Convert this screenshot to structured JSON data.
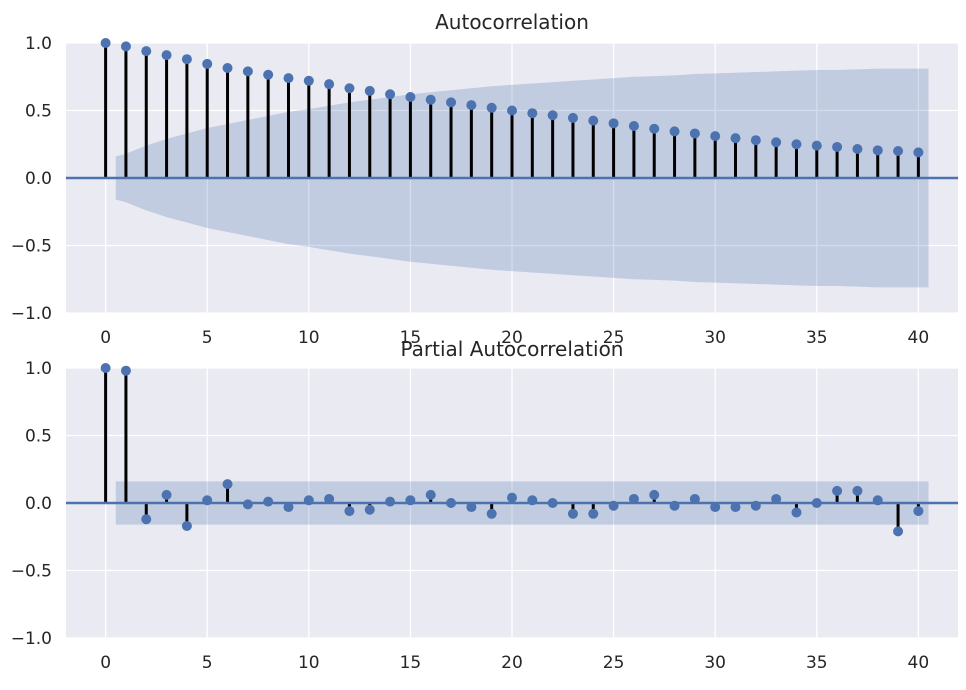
{
  "chart_data": [
    {
      "type": "stem",
      "title": "Autocorrelation",
      "xlabel": "",
      "ylabel": "",
      "xlim": [
        -1.95,
        41.95
      ],
      "ylim": [
        -1.0,
        1.0
      ],
      "xticks": [
        0,
        5,
        10,
        15,
        20,
        25,
        30,
        35,
        40
      ],
      "yticks": [
        -1.0,
        -0.5,
        0.0,
        0.5,
        1.0
      ],
      "ytick_labels": [
        "−1.0",
        "−0.5",
        "0.0",
        "0.5",
        "1.0"
      ],
      "grid": true,
      "lags": [
        0,
        1,
        2,
        3,
        4,
        5,
        6,
        7,
        8,
        9,
        10,
        11,
        12,
        13,
        14,
        15,
        16,
        17,
        18,
        19,
        20,
        21,
        22,
        23,
        24,
        25,
        26,
        27,
        28,
        29,
        30,
        31,
        32,
        33,
        34,
        35,
        36,
        37,
        38,
        39,
        40
      ],
      "values": [
        1.0,
        0.975,
        0.94,
        0.91,
        0.88,
        0.845,
        0.815,
        0.79,
        0.765,
        0.74,
        0.72,
        0.695,
        0.665,
        0.645,
        0.62,
        0.6,
        0.58,
        0.56,
        0.54,
        0.52,
        0.5,
        0.48,
        0.465,
        0.445,
        0.425,
        0.405,
        0.385,
        0.365,
        0.345,
        0.33,
        0.31,
        0.295,
        0.28,
        0.265,
        0.25,
        0.24,
        0.23,
        0.215,
        0.205,
        0.2,
        0.19
      ],
      "confidence_band": {
        "lags": [
          0.5,
          1,
          2,
          3,
          4,
          5,
          6,
          7,
          8,
          9,
          10,
          11,
          12,
          13,
          14,
          15,
          16,
          17,
          18,
          19,
          20,
          21,
          22,
          23,
          24,
          25,
          26,
          27,
          28,
          29,
          30,
          31,
          32,
          33,
          34,
          35,
          36,
          37,
          38,
          39,
          40.5
        ],
        "upper": [
          0.16,
          0.18,
          0.24,
          0.29,
          0.33,
          0.37,
          0.4,
          0.43,
          0.46,
          0.49,
          0.51,
          0.535,
          0.56,
          0.58,
          0.6,
          0.62,
          0.635,
          0.65,
          0.665,
          0.68,
          0.69,
          0.7,
          0.71,
          0.72,
          0.73,
          0.74,
          0.75,
          0.755,
          0.76,
          0.77,
          0.775,
          0.78,
          0.785,
          0.79,
          0.795,
          0.8,
          0.8,
          0.805,
          0.81,
          0.81,
          0.81
        ]
      },
      "colors": {
        "marker": "#4c72b0",
        "stem": "#000000",
        "band": "#4c72b0",
        "background": "#eaeaf2",
        "grid": "#ffffff"
      }
    },
    {
      "type": "stem",
      "title": "Partial Autocorrelation",
      "xlabel": "",
      "ylabel": "",
      "xlim": [
        -1.95,
        41.95
      ],
      "ylim": [
        -1.0,
        1.0
      ],
      "xticks": [
        0,
        5,
        10,
        15,
        20,
        25,
        30,
        35,
        40
      ],
      "yticks": [
        -1.0,
        -0.5,
        0.0,
        0.5,
        1.0
      ],
      "ytick_labels": [
        "−1.0",
        "−0.5",
        "0.0",
        "0.5",
        "1.0"
      ],
      "grid": true,
      "lags": [
        0,
        1,
        2,
        3,
        4,
        5,
        6,
        7,
        8,
        9,
        10,
        11,
        12,
        13,
        14,
        15,
        16,
        17,
        18,
        19,
        20,
        21,
        22,
        23,
        24,
        25,
        26,
        27,
        28,
        29,
        30,
        31,
        32,
        33,
        34,
        35,
        36,
        37,
        38,
        39,
        40
      ],
      "values": [
        1.0,
        0.98,
        -0.12,
        0.06,
        -0.17,
        0.02,
        0.14,
        -0.01,
        0.01,
        -0.03,
        0.02,
        0.03,
        -0.06,
        -0.05,
        0.01,
        0.02,
        0.06,
        0.0,
        -0.03,
        -0.08,
        0.04,
        0.02,
        0.0,
        -0.08,
        -0.08,
        -0.02,
        0.03,
        0.06,
        -0.02,
        0.03,
        -0.03,
        -0.03,
        -0.02,
        0.03,
        -0.07,
        0.0,
        0.09,
        0.09,
        0.02,
        -0.21,
        -0.06
      ],
      "confidence_band": {
        "lags": [
          0.5,
          40.5
        ],
        "upper": [
          0.16,
          0.16
        ]
      },
      "colors": {
        "marker": "#4c72b0",
        "stem": "#000000",
        "band": "#4c72b0",
        "background": "#eaeaf2",
        "grid": "#ffffff"
      }
    }
  ]
}
